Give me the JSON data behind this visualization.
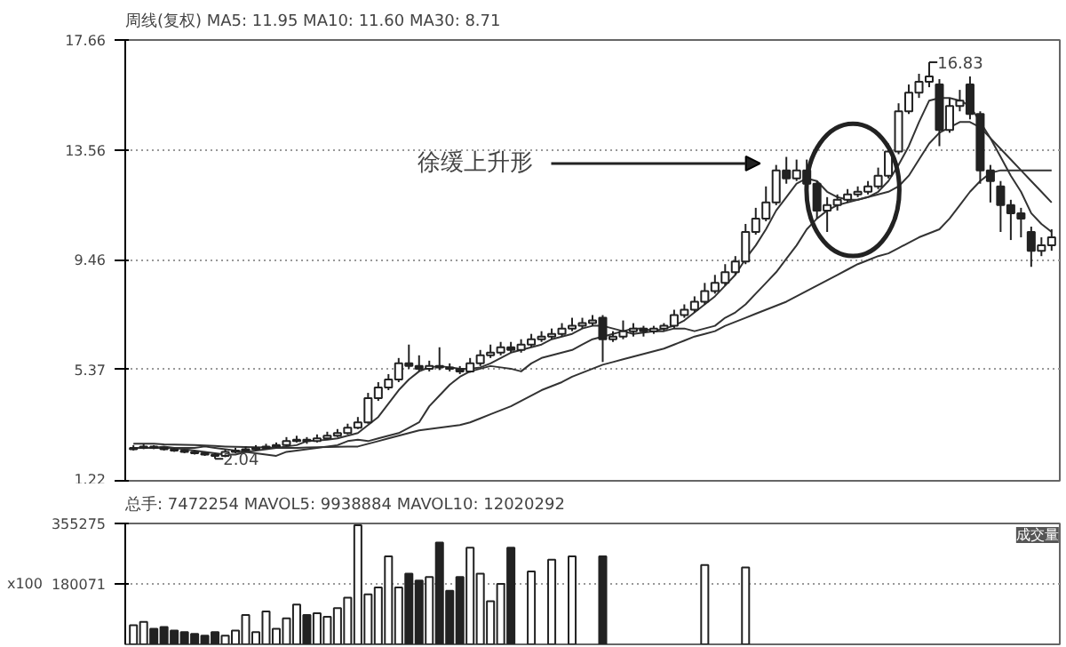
{
  "chart_data": [
    {
      "type": "candlestick",
      "title": "周线(复权)  MA5: 11.95  MA10: 11.60  MA30: 8.71",
      "categories": [
        null,
        null,
        null,
        null,
        null,
        null,
        null,
        null,
        null,
        null,
        null,
        null,
        null,
        null,
        null,
        null,
        null,
        null,
        null,
        null,
        null,
        null,
        null,
        null,
        null,
        null,
        null,
        null,
        null,
        null,
        null,
        null,
        null,
        null,
        null,
        null,
        null,
        null,
        null,
        null,
        null,
        null,
        null,
        null,
        null,
        null,
        null,
        null,
        null,
        null,
        null,
        null,
        null,
        null,
        null,
        null,
        null,
        null,
        null,
        null,
        null,
        null,
        null,
        null,
        null,
        null,
        null,
        null,
        null,
        null,
        null,
        null,
        null,
        null,
        null,
        null,
        null,
        null,
        null,
        null,
        null,
        null,
        null,
        null,
        null,
        null,
        null,
        null,
        null,
        null,
        null
      ],
      "ohlc": [
        [
          2.4,
          2.55,
          2.35,
          2.45
        ],
        [
          2.45,
          2.6,
          2.4,
          2.5
        ],
        [
          2.5,
          2.55,
          2.4,
          2.45
        ],
        [
          2.45,
          2.5,
          2.35,
          2.4
        ],
        [
          2.4,
          2.45,
          2.3,
          2.35
        ],
        [
          2.35,
          2.4,
          2.25,
          2.3
        ],
        [
          2.3,
          2.35,
          2.2,
          2.25
        ],
        [
          2.25,
          2.3,
          2.15,
          2.2
        ],
        [
          2.2,
          2.25,
          2.04,
          2.15
        ],
        [
          2.15,
          2.4,
          2.1,
          2.3
        ],
        [
          2.3,
          2.45,
          2.25,
          2.35
        ],
        [
          2.35,
          2.5,
          2.3,
          2.4
        ],
        [
          2.4,
          2.55,
          2.35,
          2.45
        ],
        [
          2.45,
          2.6,
          2.4,
          2.5
        ],
        [
          2.5,
          2.65,
          2.45,
          2.55
        ],
        [
          2.55,
          2.85,
          2.5,
          2.7
        ],
        [
          2.7,
          2.9,
          2.65,
          2.75
        ],
        [
          2.75,
          2.85,
          2.6,
          2.7
        ],
        [
          2.7,
          2.95,
          2.65,
          2.8
        ],
        [
          2.8,
          3.05,
          2.75,
          2.9
        ],
        [
          2.9,
          3.15,
          2.85,
          3.0
        ],
        [
          3.0,
          3.35,
          2.95,
          3.2
        ],
        [
          3.2,
          3.6,
          3.15,
          3.4
        ],
        [
          3.4,
          4.5,
          3.35,
          4.3
        ],
        [
          4.3,
          4.9,
          4.2,
          4.7
        ],
        [
          4.7,
          5.2,
          4.6,
          5.0
        ],
        [
          5.0,
          5.8,
          4.9,
          5.6
        ],
        [
          5.6,
          6.3,
          5.4,
          5.5
        ],
        [
          5.5,
          5.9,
          5.3,
          5.4
        ],
        [
          5.4,
          5.7,
          5.3,
          5.5
        ],
        [
          5.5,
          6.2,
          5.35,
          5.45
        ],
        [
          5.45,
          5.6,
          5.3,
          5.4
        ],
        [
          5.4,
          5.5,
          5.2,
          5.3
        ],
        [
          5.3,
          5.8,
          5.25,
          5.6
        ],
        [
          5.6,
          6.1,
          5.5,
          5.9
        ],
        [
          5.9,
          6.3,
          5.8,
          6.0
        ],
        [
          6.0,
          6.4,
          5.9,
          6.2
        ],
        [
          6.2,
          6.4,
          6.0,
          6.1
        ],
        [
          6.1,
          6.5,
          6.0,
          6.3
        ],
        [
          6.3,
          6.7,
          6.2,
          6.5
        ],
        [
          6.5,
          6.8,
          6.4,
          6.6
        ],
        [
          6.6,
          6.9,
          6.5,
          6.7
        ],
        [
          6.7,
          7.1,
          6.6,
          6.9
        ],
        [
          6.9,
          7.3,
          6.8,
          7.0
        ],
        [
          7.0,
          7.3,
          6.9,
          7.1
        ],
        [
          7.1,
          7.4,
          7.0,
          7.2
        ],
        [
          7.3,
          7.4,
          5.65,
          6.5
        ],
        [
          6.5,
          6.8,
          6.4,
          6.6
        ],
        [
          6.6,
          7.2,
          6.5,
          6.8
        ],
        [
          6.8,
          7.1,
          6.6,
          6.9
        ],
        [
          6.9,
          7.0,
          6.6,
          6.8
        ],
        [
          6.8,
          7.0,
          6.7,
          6.9
        ],
        [
          6.9,
          7.1,
          6.8,
          7.0
        ],
        [
          7.0,
          7.6,
          6.9,
          7.4
        ],
        [
          7.4,
          7.8,
          7.3,
          7.6
        ],
        [
          7.6,
          8.1,
          7.5,
          7.9
        ],
        [
          7.9,
          8.6,
          7.8,
          8.3
        ],
        [
          8.3,
          8.9,
          8.2,
          8.6
        ],
        [
          8.6,
          9.3,
          8.5,
          9.0
        ],
        [
          9.0,
          9.6,
          8.9,
          9.4
        ],
        [
          9.4,
          10.8,
          9.3,
          10.5
        ],
        [
          10.5,
          11.4,
          10.4,
          11.0
        ],
        [
          11.0,
          12.2,
          10.9,
          11.6
        ],
        [
          11.6,
          13.0,
          11.5,
          12.8
        ],
        [
          12.8,
          13.3,
          12.3,
          12.5
        ],
        [
          12.5,
          13.2,
          12.4,
          12.8
        ],
        [
          12.8,
          13.2,
          12.0,
          12.3
        ],
        [
          12.3,
          12.4,
          11.0,
          11.3
        ],
        [
          11.3,
          11.8,
          10.5,
          11.5
        ],
        [
          11.5,
          11.9,
          11.3,
          11.7
        ],
        [
          11.7,
          12.1,
          11.6,
          11.9
        ],
        [
          11.9,
          12.2,
          11.8,
          12.0
        ],
        [
          12.0,
          12.4,
          11.9,
          12.2
        ],
        [
          12.2,
          12.9,
          12.1,
          12.6
        ],
        [
          12.6,
          13.8,
          12.5,
          13.5
        ],
        [
          13.5,
          15.3,
          13.4,
          15.0
        ],
        [
          15.0,
          16.0,
          14.9,
          15.7
        ],
        [
          15.7,
          16.4,
          15.5,
          16.1
        ],
        [
          16.1,
          16.83,
          15.9,
          16.3
        ],
        [
          16.0,
          16.2,
          13.7,
          14.3
        ],
        [
          14.3,
          15.5,
          14.2,
          15.2
        ],
        [
          15.2,
          15.8,
          15.0,
          15.4
        ],
        [
          16.0,
          16.3,
          14.7,
          14.9
        ],
        [
          14.9,
          15.0,
          12.3,
          12.8
        ],
        [
          12.8,
          13.0,
          11.6,
          12.4
        ],
        [
          12.2,
          12.4,
          10.5,
          11.5
        ],
        [
          11.5,
          11.7,
          10.2,
          11.2
        ],
        [
          11.2,
          11.4,
          10.3,
          11.0
        ],
        [
          10.5,
          10.7,
          9.2,
          9.8
        ],
        [
          9.8,
          10.3,
          9.6,
          10.0
        ],
        [
          10.0,
          10.6,
          9.8,
          10.3
        ]
      ],
      "series": [
        {
          "type": "line",
          "color": "#333333",
          "values": [
            2.45,
            2.45,
            2.45,
            2.5,
            2.45,
            2.4,
            2.35,
            2.3,
            2.25,
            2.2,
            2.2,
            2.3,
            2.35,
            2.4,
            2.45,
            2.5,
            2.55,
            2.7,
            2.72,
            2.75,
            2.8,
            2.9,
            3.0,
            3.3,
            3.6,
            4.1,
            4.6,
            5.0,
            5.3,
            5.45,
            5.5,
            5.45,
            5.4,
            5.4,
            5.45,
            5.6,
            5.8,
            6.0,
            6.1,
            6.2,
            6.3,
            6.5,
            6.6,
            6.7,
            6.9,
            7.0,
            7.0,
            6.9,
            6.8,
            6.7,
            6.75,
            6.8,
            6.9,
            7.0,
            7.2,
            7.5,
            7.8,
            8.1,
            8.5,
            8.9,
            9.5,
            10.0,
            10.6,
            11.3,
            11.8,
            12.3,
            12.5,
            12.4,
            12.0,
            11.8,
            11.7,
            11.7,
            11.8,
            12.0,
            12.4,
            13.0,
            13.7,
            14.6,
            15.4,
            15.5,
            15.5,
            15.4,
            15.2,
            14.6,
            14.0,
            13.3,
            12.6,
            12.0,
            11.2,
            10.8,
            10.5
          ]
        },
        {
          "type": "line",
          "color": "#333333",
          "values": [
            2.45,
            2.45,
            2.45,
            2.45,
            2.45,
            2.45,
            2.45,
            2.5,
            2.45,
            2.4,
            2.35,
            2.3,
            2.25,
            2.2,
            2.15,
            2.3,
            2.35,
            2.4,
            2.45,
            2.5,
            2.55,
            2.7,
            2.75,
            2.7,
            2.8,
            2.9,
            3.0,
            3.2,
            3.4,
            4.0,
            4.4,
            4.8,
            5.1,
            5.3,
            5.4,
            5.5,
            5.45,
            5.4,
            5.3,
            5.6,
            5.8,
            5.9,
            6.0,
            6.1,
            6.3,
            6.5,
            6.6,
            6.7,
            6.8,
            6.9,
            6.9,
            6.8,
            6.8,
            6.9,
            6.9,
            6.8,
            6.9,
            7.0,
            7.3,
            7.5,
            7.8,
            8.2,
            8.6,
            9.0,
            9.5,
            10.0,
            10.6,
            11.0,
            11.3,
            11.5,
            11.6,
            11.7,
            11.8,
            11.9,
            12.0,
            12.2,
            12.6,
            13.2,
            13.8,
            14.2,
            14.4,
            14.6,
            14.6,
            14.4,
            14.0,
            13.6,
            13.2,
            12.8,
            12.4,
            12.0,
            11.6
          ]
        },
        {
          "type": "line",
          "color": "#333333",
          "values": [
            2.6,
            2.6,
            2.6,
            2.58,
            2.57,
            2.56,
            2.55,
            2.54,
            2.52,
            2.5,
            2.49,
            2.48,
            2.47,
            2.46,
            2.45,
            2.45,
            2.45,
            2.46,
            2.47,
            2.48,
            2.49,
            2.5,
            2.5,
            2.6,
            2.7,
            2.8,
            2.9,
            3.0,
            3.1,
            3.15,
            3.2,
            3.25,
            3.3,
            3.4,
            3.55,
            3.7,
            3.85,
            4.0,
            4.2,
            4.4,
            4.6,
            4.75,
            4.9,
            5.1,
            5.25,
            5.4,
            5.55,
            5.65,
            5.75,
            5.85,
            5.95,
            6.05,
            6.15,
            6.3,
            6.45,
            6.6,
            6.7,
            6.8,
            7.0,
            7.15,
            7.3,
            7.45,
            7.6,
            7.75,
            7.9,
            8.1,
            8.3,
            8.5,
            8.7,
            8.9,
            9.1,
            9.3,
            9.45,
            9.6,
            9.7,
            9.9,
            10.1,
            10.3,
            10.45,
            10.6,
            11.0,
            11.5,
            12.0,
            12.4,
            12.7,
            12.8,
            12.8,
            12.8,
            12.8,
            12.8,
            12.8
          ]
        }
      ],
      "ylim": [
        1.22,
        17.66
      ],
      "yticks": [
        1.22,
        5.37,
        9.46,
        13.56,
        17.66
      ],
      "grid": "y",
      "annotations": [
        "徐缓上升形",
        "16.83",
        "2.04"
      ]
    },
    {
      "type": "bar",
      "title": "总手: 7472254  MAVOL5: 9938884  MAVOL10: 12020292",
      "categories": [
        null,
        null,
        null,
        null,
        null,
        null,
        null,
        null,
        null,
        null,
        null,
        null,
        null,
        null,
        null,
        null,
        null,
        null,
        null,
        null,
        null,
        null,
        null,
        null,
        null,
        null,
        null,
        null,
        null,
        null,
        null,
        null,
        null,
        null,
        null,
        null,
        null,
        null,
        null,
        null,
        null,
        null,
        null,
        null,
        null,
        null,
        null,
        null,
        null,
        null,
        null,
        null,
        null,
        null,
        null,
        null,
        null,
        null,
        null,
        null,
        null,
        null,
        null,
        null,
        null,
        null,
        null,
        null,
        null,
        null,
        null,
        null,
        null,
        null,
        null,
        null,
        null,
        null,
        null,
        null,
        null,
        null,
        null,
        null,
        null,
        null,
        null,
        null,
        null,
        null,
        null
      ],
      "values": [
        60000,
        70000,
        50000,
        55000,
        45000,
        40000,
        35000,
        30000,
        40000,
        30000,
        45000,
        90000,
        40000,
        100000,
        50000,
        80000,
        120000,
        90000,
        95000,
        85000,
        110000,
        140000,
        350000,
        150000,
        170000,
        260000,
        170000,
        210000,
        190000,
        200000,
        300000,
        160000,
        200000,
        285000,
        210000,
        130000,
        180000,
        285000,
        null,
        216000,
        null,
        250000,
        null,
        260000,
        null,
        null,
        260000,
        null,
        null,
        null,
        null,
        null,
        null,
        null,
        null,
        null,
        235000,
        null,
        null,
        null,
        228000,
        null,
        null,
        null,
        null,
        null,
        null,
        null,
        null,
        null,
        null,
        null,
        null,
        null,
        null,
        null,
        null,
        null,
        null,
        null,
        null,
        null,
        null,
        null,
        null,
        null,
        null,
        null,
        null,
        null,
        null
      ],
      "colors": [
        "#ffffff",
        "#ffffff",
        "#222222",
        "#222222",
        "#222222",
        "#222222",
        "#222222",
        "#222222",
        "#222222",
        "#ffffff",
        "#ffffff",
        "#ffffff",
        "#ffffff",
        "#ffffff",
        "#ffffff",
        "#ffffff",
        "#ffffff",
        "#222222",
        "#ffffff",
        "#ffffff",
        "#ffffff",
        "#ffffff",
        "#ffffff",
        "#ffffff",
        "#ffffff",
        "#ffffff",
        "#ffffff",
        "#222222",
        "#222222",
        "#ffffff",
        "#222222",
        "#222222",
        "#222222",
        "#ffffff",
        "#ffffff",
        "#ffffff",
        "#ffffff",
        "#222222",
        "#ffffff",
        "#ffffff",
        "#ffffff",
        "#ffffff",
        "#ffffff",
        "#ffffff",
        "#ffffff",
        "#ffffff",
        "#222222",
        "#ffffff",
        "#ffffff",
        "#ffffff",
        "#222222",
        "#ffffff",
        "#ffffff",
        "#ffffff",
        "#ffffff",
        "#ffffff",
        "#ffffff",
        "#ffffff",
        "#ffffff",
        "#ffffff",
        "#ffffff",
        "#ffffff",
        "#ffffff",
        "#ffffff",
        "#222222",
        "#ffffff",
        "#222222",
        "#222222",
        "#ffffff",
        "#ffffff",
        "#ffffff",
        "#ffffff",
        "#ffffff",
        "#ffffff",
        "#ffffff",
        "#ffffff",
        "#ffffff",
        "#ffffff",
        "#ffffff",
        "#222222",
        "#ffffff",
        "#ffffff",
        "#222222",
        "#222222",
        "#222222",
        "#222222",
        "#222222",
        "#222222",
        "#222222",
        "#ffffff",
        "#ffffff"
      ],
      "ylim": [
        4867,
        355275
      ],
      "yticks": [
        180071,
        355275
      ],
      "grid": "y",
      "annotations": [
        "x100",
        "成交量"
      ]
    }
  ]
}
